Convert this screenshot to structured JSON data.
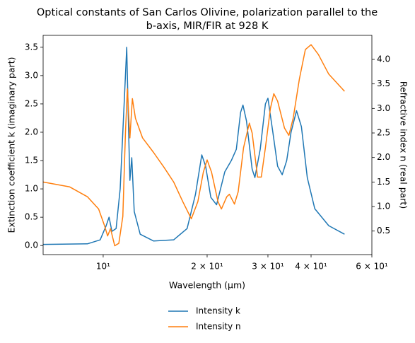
{
  "chart_data": {
    "type": "line",
    "title": [
      "Optical constants of San Carlos Olivine, polarization parallel to the",
      "b-axis, MIR/FIR at 928 K"
    ],
    "xlabel": "Wavelength (μm)",
    "ylabel": "Extinction coefficient k (imaginary part)",
    "y2label": "Refractive index n (real part)",
    "xscale": "log",
    "xlim": [
      6.7,
      60
    ],
    "xticks": [
      {
        "value": 10,
        "label": "10¹"
      },
      {
        "value": 20,
        "label": "2 × 10¹"
      },
      {
        "value": 30,
        "label": "3 × 10¹"
      },
      {
        "value": 40,
        "label": "4 × 10¹"
      },
      {
        "value": 60,
        "label": "6 × 10¹"
      }
    ],
    "ylim": [
      -0.16,
      3.71
    ],
    "yticks": [
      {
        "value": 0,
        "label": "0.0"
      },
      0.5,
      {
        "value": 1,
        "label": "1.0"
      },
      1.5,
      {
        "value": 2,
        "label": "2.0"
      },
      2.5,
      {
        "value": 3,
        "label": "3.0"
      },
      3.5
    ],
    "y2lim": [
      0.02,
      4.49
    ],
    "y2ticks": [
      0.5,
      {
        "value": 1,
        "label": "1.0"
      },
      1.5,
      {
        "value": 2,
        "label": "2.0"
      },
      2.5,
      {
        "value": 3,
        "label": "3.0"
      },
      3.5,
      {
        "value": 4,
        "label": "4.0"
      }
    ],
    "legend": "below",
    "series": [
      {
        "name": "Intensity k",
        "color": "#1f77b4",
        "x": [
          6.7,
          9,
          9.8,
          10.2,
          10.4,
          10.6,
          10.9,
          11.2,
          11.5,
          11.7,
          11.85,
          11.95,
          12.1,
          12.3,
          12.8,
          14,
          16,
          17.5,
          18.5,
          19.3,
          19.8,
          20.5,
          21.3,
          22.5,
          23.5,
          24.3,
          25,
          25.4,
          26,
          27,
          27.5,
          28.5,
          29.5,
          30,
          31,
          32,
          33,
          34,
          35,
          36.3,
          37.5,
          39,
          41,
          45,
          50
        ],
        "values": [
          0.02,
          0.03,
          0.1,
          0.35,
          0.5,
          0.25,
          0.3,
          1.0,
          2.5,
          3.5,
          2.0,
          1.15,
          1.55,
          0.6,
          0.2,
          0.08,
          0.1,
          0.3,
          0.9,
          1.6,
          1.4,
          0.85,
          0.72,
          1.3,
          1.5,
          1.7,
          2.35,
          2.48,
          2.2,
          1.35,
          1.2,
          1.7,
          2.5,
          2.6,
          2.0,
          1.4,
          1.25,
          1.5,
          2.0,
          2.38,
          2.1,
          1.2,
          0.65,
          0.35,
          0.2
        ]
      },
      {
        "name": "Intensity n",
        "color": "#ff7f0e",
        "axis": "y2",
        "x": [
          6.7,
          8,
          9,
          9.7,
          10.1,
          10.3,
          10.5,
          10.8,
          11.1,
          11.4,
          11.6,
          11.75,
          11.95,
          12.15,
          12.4,
          13,
          14,
          15,
          16,
          17,
          18,
          18.8,
          19.5,
          20,
          20.6,
          21.5,
          22,
          22.8,
          23.2,
          24,
          24.6,
          25.5,
          26.5,
          27,
          28,
          28.7,
          29.5,
          30.5,
          31.2,
          32,
          33.5,
          34.5,
          35.5,
          37,
          38.5,
          40,
          42,
          45,
          50
        ],
        "values": [
          1.5,
          1.4,
          1.2,
          0.95,
          0.6,
          0.4,
          0.55,
          0.2,
          0.25,
          0.8,
          2.5,
          3.4,
          2.4,
          3.2,
          2.8,
          2.4,
          2.1,
          1.8,
          1.5,
          1.1,
          0.75,
          1.1,
          1.7,
          1.95,
          1.7,
          1.1,
          0.95,
          1.2,
          1.25,
          1.05,
          1.3,
          2.2,
          2.7,
          2.5,
          1.6,
          1.6,
          2.2,
          3.0,
          3.3,
          3.15,
          2.6,
          2.45,
          2.8,
          3.6,
          4.2,
          4.3,
          4.1,
          3.7,
          3.35
        ]
      }
    ]
  }
}
